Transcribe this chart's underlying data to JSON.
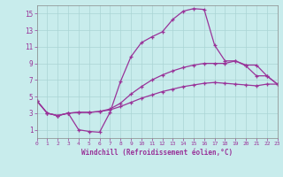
{
  "xlabel": "Windchill (Refroidissement éolien,°C)",
  "background_color": "#c8ecec",
  "line_color": "#993399",
  "grid_color": "#aad4d4",
  "xmin": 0,
  "xmax": 23,
  "ymin": 0,
  "ymax": 16,
  "yticks": [
    1,
    3,
    5,
    7,
    9,
    11,
    13,
    15
  ],
  "xticks": [
    0,
    1,
    2,
    3,
    4,
    5,
    6,
    7,
    8,
    9,
    10,
    11,
    12,
    13,
    14,
    15,
    16,
    17,
    18,
    19,
    20,
    21,
    22,
    23
  ],
  "curve1_x": [
    0,
    1,
    2,
    3,
    4,
    5,
    6,
    7,
    8,
    9,
    10,
    11,
    12,
    13,
    14,
    15,
    16,
    17,
    18,
    19,
    20,
    21,
    22,
    23
  ],
  "curve1_y": [
    4.5,
    3.0,
    2.7,
    3.0,
    1.0,
    0.8,
    0.7,
    3.1,
    6.8,
    9.8,
    11.5,
    12.2,
    12.8,
    14.3,
    15.3,
    15.6,
    15.5,
    11.2,
    9.3,
    9.3,
    8.7,
    7.5,
    7.5,
    6.5
  ],
  "curve2_x": [
    0,
    1,
    2,
    3,
    4,
    5,
    6,
    7,
    8,
    9,
    10,
    11,
    12,
    13,
    14,
    15,
    16,
    17,
    18,
    19,
    20,
    21,
    22,
    23
  ],
  "curve2_y": [
    4.5,
    3.0,
    2.7,
    3.0,
    3.1,
    3.1,
    3.2,
    3.5,
    4.2,
    5.3,
    6.2,
    7.0,
    7.6,
    8.1,
    8.5,
    8.8,
    9.0,
    9.0,
    9.0,
    9.3,
    8.8,
    8.8,
    7.5,
    6.5
  ],
  "curve3_x": [
    0,
    1,
    2,
    3,
    4,
    5,
    6,
    7,
    8,
    9,
    10,
    11,
    12,
    13,
    14,
    15,
    16,
    17,
    18,
    19,
    20,
    21,
    22,
    23
  ],
  "curve3_y": [
    4.5,
    3.0,
    2.7,
    3.0,
    3.1,
    3.1,
    3.2,
    3.4,
    3.8,
    4.3,
    4.8,
    5.2,
    5.6,
    5.9,
    6.2,
    6.4,
    6.6,
    6.7,
    6.6,
    6.5,
    6.4,
    6.3,
    6.5,
    6.5
  ]
}
